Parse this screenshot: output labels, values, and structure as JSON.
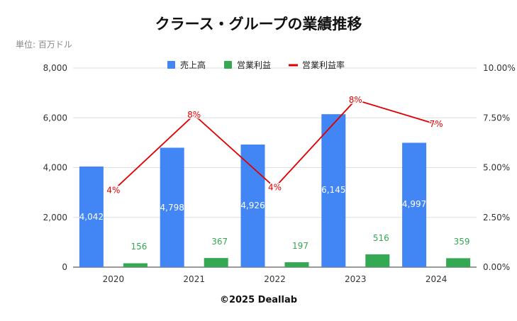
{
  "title": "クラース・グループの業績推移",
  "unit_label": "単位: 百万ドル",
  "footer": "©2025 Deallab",
  "colors": {
    "sales": "#4285f4",
    "operating_income": "#34a853",
    "operating_margin": "#e00000",
    "grid": "#dddddd"
  },
  "chart_data": {
    "type": "bar",
    "title": "クラース・グループの業績推移",
    "categories": [
      "2020",
      "2021",
      "2022",
      "2023",
      "2024"
    ],
    "series": [
      {
        "name": "売上高",
        "type": "bar",
        "axis": "left",
        "values": [
          4042,
          4798,
          4926,
          6145,
          4997
        ],
        "labels": [
          "4,042",
          "4,798",
          "4,926",
          "6,145",
          "4,997"
        ]
      },
      {
        "name": "営業利益",
        "type": "bar",
        "axis": "left",
        "values": [
          156,
          367,
          197,
          516,
          359
        ],
        "labels": [
          "156",
          "367",
          "197",
          "516",
          "359"
        ]
      },
      {
        "name": "営業利益率",
        "type": "line",
        "axis": "right",
        "values": [
          3.86,
          7.65,
          4.0,
          8.4,
          7.18
        ],
        "labels": [
          "4%",
          "8%",
          "4%",
          "8%",
          "7%"
        ]
      }
    ],
    "y_left": {
      "range": [
        0,
        8000
      ],
      "ticks": [
        0,
        2000,
        4000,
        6000,
        8000
      ],
      "tick_labels": [
        "0",
        "2,000",
        "4,000",
        "6,000",
        "8,000"
      ]
    },
    "y_right": {
      "range": [
        0,
        10
      ],
      "ticks": [
        0,
        2.5,
        5,
        7.5,
        10
      ],
      "tick_labels": [
        "0.00%",
        "2.50%",
        "5.00%",
        "7.50%",
        "10.00%"
      ]
    },
    "legend": {
      "position": "top",
      "entries": [
        "売上高",
        "営業利益",
        "営業利益率"
      ]
    },
    "grid": true
  }
}
